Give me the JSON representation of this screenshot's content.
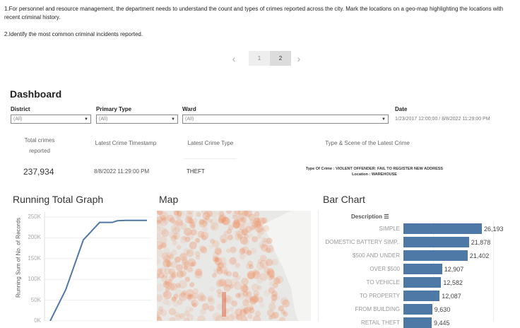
{
  "intro": {
    "line1": "1.For personnel and resource management, the department needs to understand the count and types of crimes reported across the city. Mark the locations on a geo-map highlighting the locations with recent criminal history.",
    "line2": "2.Identify the most common criminal incidents reported."
  },
  "pager": {
    "prev": "‹",
    "pages": [
      "1",
      "2"
    ],
    "current": "2",
    "next": "›"
  },
  "title": "Dashboard",
  "filters": {
    "district": {
      "label": "District",
      "value": "(All)"
    },
    "primary_type": {
      "label": "Primary Type",
      "value": "(All)"
    },
    "ward": {
      "label": "Ward",
      "value": "(All)"
    },
    "date": {
      "label": "Date",
      "value": "1/23/2017 12:00:00 / 8/8/2022 11:29:00 PM"
    }
  },
  "kpi": {
    "total_label": "Total crimes reported",
    "total_value": "237,934",
    "ts_label": "Latest Crime Timestamp",
    "ts_value": "8/8/2022 11:29:00 PM",
    "type_label": "Latest Crime Type",
    "type_value": "THEFT",
    "scene_label": "Type & Scene of the Latest Crime",
    "scene_type": "Type Of Crime : VIOLENT OFFENDER: FAIL TO REGISTER NEW ADDRESS",
    "scene_location": "Location : WAREHOUSE"
  },
  "sections": {
    "running": "Running Total Graph",
    "map": "Map",
    "bar": "Bar Chart"
  },
  "chart_data": [
    {
      "type": "line",
      "title": "Running Total Graph",
      "ylabel": "Running Sum of No. of Records",
      "yticks": [
        "250K",
        "200K",
        "150K",
        "100K",
        "50K",
        "0K"
      ],
      "ylim": [
        0,
        250000
      ],
      "values": [
        0,
        75000,
        195000,
        237000,
        237000,
        241000,
        242000,
        242000,
        242000
      ],
      "color": "#4e79a7"
    },
    {
      "type": "bar",
      "title": "Bar Chart",
      "header": "Description",
      "categories": [
        "SIMPLE",
        "DOMESTIC BATTERY SIMP..",
        "$500 AND UNDER",
        "OVER $500",
        "TO VEHICLE",
        "TO PROPERTY",
        "FROM BUILDING",
        "RETAIL THEFT"
      ],
      "values": [
        26193,
        21878,
        21402,
        12907,
        12582,
        12087,
        9630,
        9445
      ],
      "labels": [
        "26,193",
        "21,878",
        "21,402",
        "12,907",
        "12,582",
        "12,087",
        "9,630",
        "9,445"
      ],
      "color": "#4e79a7"
    }
  ]
}
